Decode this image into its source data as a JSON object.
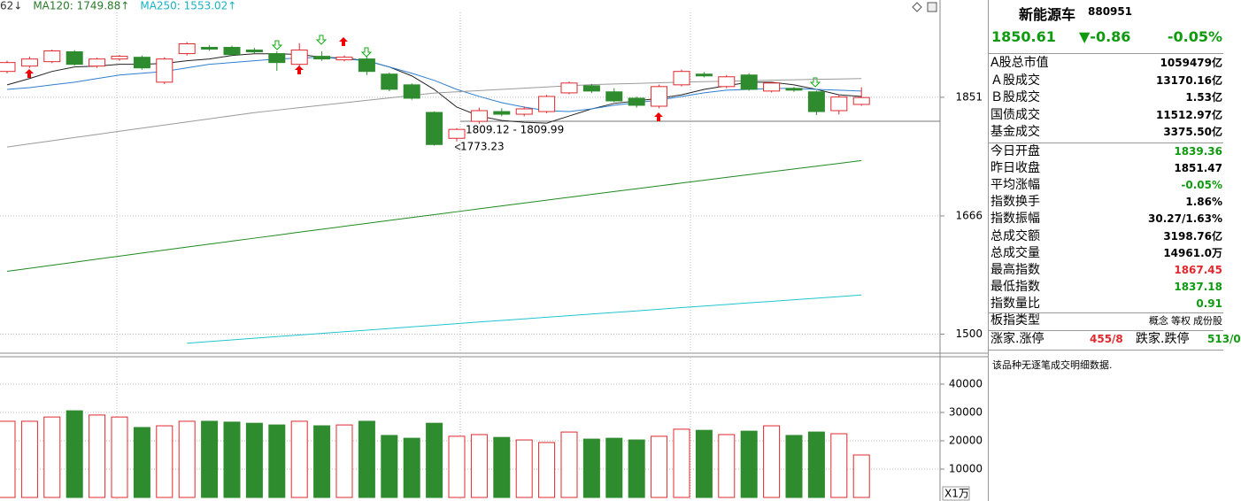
{
  "chart_data": [
    {
      "type": "candlestick",
      "header": [
        {
          "text": "62↓",
          "color": "#333333"
        },
        {
          "text": "MA120: 1749.88↑",
          "color": "#2a7a2a"
        },
        {
          "text": "MA250: 1553.02↑",
          "color": "#17b3c0"
        }
      ],
      "open": [
        1894,
        1903,
        1910.5,
        1927.3,
        1903,
        1915,
        1918,
        1876,
        1924.2,
        1934.9,
        1934.9,
        1930.3,
        1924.2,
        1906,
        1919.6,
        1913.6,
        1915.1,
        1889.5,
        1871.6,
        1826.3,
        1784.8,
        1811.9,
        1827.7,
        1823.4,
        1827.7,
        1858.3,
        1870.1,
        1860,
        1849.5,
        1836.4,
        1871.6,
        1889.5,
        1868.7,
        1888,
        1861.3,
        1865.7,
        1860,
        1829.2,
        1839.36
      ],
      "high": [
        1912,
        1919,
        1931,
        1930,
        1917,
        1922,
        1921,
        1918,
        1944,
        1939,
        1938,
        1934,
        1928,
        1942,
        1928,
        1921,
        1919,
        1892,
        1874,
        1828,
        1801,
        1834,
        1833,
        1836,
        1855,
        1877,
        1873,
        1866,
        1852,
        1872,
        1897,
        1893,
        1888,
        1891,
        1877,
        1868,
        1862,
        1855,
        1867.45
      ],
      "low": [
        1891,
        1900,
        1908,
        1904,
        1900,
        1912,
        1897,
        1873,
        1921,
        1929,
        1920,
        1924,
        1895,
        1903,
        1912,
        1911,
        1888,
        1861,
        1847,
        1773.23,
        1780,
        1808,
        1820,
        1820,
        1825,
        1856,
        1858,
        1843,
        1834,
        1833,
        1869,
        1884,
        1866,
        1862,
        1859,
        1860,
        1822,
        1823,
        1837.18
      ],
      "close": [
        1909,
        1915,
        1928.8,
        1906,
        1915,
        1919.6,
        1900,
        1915,
        1941,
        1931.9,
        1922.7,
        1927.3,
        1909,
        1930.3,
        1915.1,
        1918.1,
        1894,
        1864.2,
        1849.5,
        1775,
        1799,
        1829.2,
        1823.4,
        1832.1,
        1852.4,
        1874.6,
        1861.3,
        1845.1,
        1837.9,
        1868.7,
        1894,
        1886.5,
        1885,
        1864.2,
        1874.6,
        1862.8,
        1827.7,
        1851.47,
        1850.61
      ],
      "up_color": "#e0282e",
      "down_color": "#2e8b2e",
      "series": [
        {
          "color": "#222222",
          "values": [
            1871.6,
            1882,
            1894,
            1901.5,
            1903,
            1906,
            1906,
            1907.5,
            1912,
            1915,
            1921,
            1924,
            1924,
            1922.7,
            1918,
            1916.6,
            1912,
            1901.5,
            1886.5,
            1864,
            1835,
            1820.5,
            1813.3,
            1810.5,
            1809,
            1820.5,
            1832,
            1841,
            1845,
            1849.5,
            1855,
            1864,
            1870,
            1876,
            1876,
            1871.6,
            1864,
            1855,
            1852.4
          ]
        },
        {
          "color": "#2f7fd0",
          "values": [
            1864,
            1867,
            1871.6,
            1876,
            1882,
            1888,
            1891,
            1894,
            1900,
            1906,
            1909,
            1912,
            1915,
            1916.6,
            1918,
            1915,
            1912,
            1901.5,
            1891,
            1879,
            1864,
            1852.4,
            1842.2,
            1835,
            1829.2,
            1827.7,
            1832,
            1838,
            1842.2,
            1846.6,
            1852.4,
            1858.3,
            1862.8,
            1864,
            1865.7,
            1865.7,
            1864,
            1862.8,
            1861.3
          ]
        },
        {
          "color": "#9a9a9a",
          "values": [
            1771,
            1776,
            1781,
            1786,
            1791,
            1796,
            1801,
            1806,
            1811,
            1816,
            1821,
            1826,
            1830,
            1834,
            1838,
            1842,
            1846,
            1850,
            1854,
            1858,
            1860,
            1862,
            1864,
            1866,
            1868,
            1870,
            1872,
            1873,
            1874,
            1875,
            1876,
            1876.8,
            1877.6,
            1878.4,
            1879.2,
            1880,
            1880.7,
            1881.4,
            1882
          ]
        },
        {
          "color": "#1f8a1f",
          "values": [
            1586,
            1590.3,
            1594.6,
            1598.9,
            1603.3,
            1607.6,
            1611.9,
            1616.2,
            1620.5,
            1624.8,
            1629.1,
            1633.4,
            1637.7,
            1642.1,
            1646.4,
            1650.7,
            1655,
            1659.3,
            1663.6,
            1667.9,
            1672.2,
            1676.5,
            1680.9,
            1685.2,
            1689.5,
            1693.8,
            1698.1,
            1702.4,
            1706.7,
            1711,
            1715.3,
            1719.6,
            1724,
            1728.3,
            1732.6,
            1736.9,
            1741.2,
            1745.5,
            1749.88
          ]
        },
        {
          "color": "#22c4d0",
          "values": [
            null,
            null,
            null,
            null,
            null,
            null,
            null,
            null,
            1488,
            1490.2,
            1492.3,
            1494.5,
            1496.7,
            1498.8,
            1501,
            1503.2,
            1505.3,
            1507.5,
            1509.7,
            1511.8,
            1514,
            1516.2,
            1518.3,
            1520.5,
            1522.7,
            1524.8,
            1527,
            1529.2,
            1531.3,
            1533.5,
            1535.7,
            1537.8,
            1540,
            1542.2,
            1544.3,
            1546.5,
            1548.7,
            1550.8,
            1553.02
          ]
        }
      ],
      "annotations": [
        "1809.12 - 1809.99",
        "1773.23"
      ],
      "ylim": [
        1476,
        2018
      ],
      "yticks": [
        1500,
        1666,
        1851
      ],
      "log": true,
      "grid": true
    },
    {
      "type": "bar",
      "values": [
        26900,
        26900,
        28400,
        30600,
        29100,
        28400,
        24700,
        25300,
        26900,
        26900,
        26600,
        26200,
        25600,
        26900,
        25300,
        25600,
        26900,
        21900,
        20900,
        26200,
        21600,
        22200,
        21200,
        20300,
        19400,
        23100,
        20600,
        20900,
        20300,
        21600,
        24100,
        23700,
        22200,
        23400,
        25300,
        21900,
        23100,
        22500,
        15000
      ],
      "unit": "X1万",
      "ylim": [
        0,
        48750
      ],
      "yticks": [
        10000,
        20000,
        30000,
        40000
      ],
      "grid": true
    }
  ],
  "panel": {
    "name": "新能源车",
    "code": "880951",
    "price": "1850.61",
    "change": "▼-0.86",
    "change_pct": "-0.05%",
    "market_rows": [
      {
        "label": "A股总市值",
        "value": "1059479亿"
      },
      {
        "label": "Ａ股成交",
        "value": "13170.16亿"
      },
      {
        "label": "Ｂ股成交",
        "value": "1.53亿"
      },
      {
        "label": "国债成交",
        "value": "11512.97亿"
      },
      {
        "label": "基金成交",
        "value": "3375.50亿"
      }
    ],
    "index_rows": [
      {
        "label": "今日开盘",
        "value": "1839.36",
        "color": "#109a10"
      },
      {
        "label": "昨日收盘",
        "value": "1851.47",
        "color": "#000000"
      },
      {
        "label": "平均涨幅",
        "value": "-0.05%",
        "color": "#109a10"
      },
      {
        "label": "指数换手",
        "value": "1.86%",
        "color": "#000000"
      },
      {
        "label": "指数振幅",
        "value": "30.27/1.63%",
        "color": "#000000"
      },
      {
        "label": "总成交额",
        "value": "3198.76亿",
        "color": "#000000"
      },
      {
        "label": "总成交量",
        "value": "14961.0万",
        "color": "#000000"
      },
      {
        "label": "最高指数",
        "value": "1867.45",
        "color": "#e0282e"
      },
      {
        "label": "最低指数",
        "value": "1837.18",
        "color": "#109a10"
      },
      {
        "label": "指数量比",
        "value": "0.91",
        "color": "#109a10"
      }
    ],
    "type_row": {
      "label": "板指类型",
      "buttons": [
        "概念",
        "等权",
        "成份股"
      ]
    },
    "breadth_row": {
      "up_label": "涨家.涨停",
      "up_value": "455/8",
      "down_label": "跌家.跌停",
      "down_value": "513/0"
    },
    "note": "该品种无逐笔成交明细数据."
  }
}
